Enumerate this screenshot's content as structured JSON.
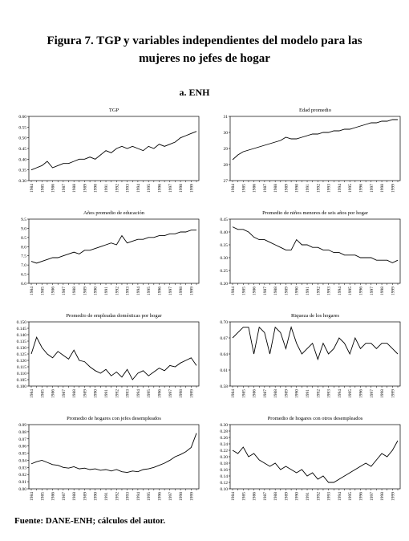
{
  "title": "Figura 7. TGP y variables independientes del modelo para las mujeres no jefes de hogar",
  "subtitle": "a. ENH",
  "footer": "Fuente: DANE-ENH; cálculos del autor.",
  "chart_data": [
    {
      "type": "line",
      "title": "TGP",
      "categories": [
        "1984",
        null,
        "1985",
        null,
        "1986",
        null,
        "1987",
        null,
        "1988",
        null,
        "1989",
        null,
        "1990",
        null,
        "1991",
        null,
        "1992",
        null,
        "1993",
        null,
        "1994",
        null,
        "1995",
        null,
        "1996",
        null,
        "1997",
        null,
        "1998",
        null,
        "1999",
        null
      ],
      "values": [
        0.35,
        0.36,
        0.37,
        0.39,
        0.36,
        0.37,
        0.38,
        0.38,
        0.39,
        0.4,
        0.4,
        0.41,
        0.4,
        0.42,
        0.44,
        0.43,
        0.45,
        0.46,
        0.45,
        0.46,
        0.45,
        0.44,
        0.46,
        0.45,
        0.47,
        0.46,
        0.47,
        0.48,
        0.5,
        0.51,
        0.52,
        0.53
      ],
      "color": "#000000",
      "ylim": [
        0.3,
        0.6
      ],
      "yticks": [
        {
          "value": 0.3,
          "label": "0.30"
        },
        {
          "value": 0.35,
          "label": "0.35"
        },
        {
          "value": 0.4,
          "label": "0.40"
        },
        {
          "value": 0.45,
          "label": "0.45"
        },
        {
          "value": 0.5,
          "label": "0.50"
        },
        {
          "value": 0.55,
          "label": "0.55"
        },
        {
          "value": 0.6,
          "label": "0.60"
        }
      ]
    },
    {
      "type": "line",
      "title": "Edad promedio",
      "categories": [
        "1984",
        null,
        "1985",
        null,
        "1986",
        null,
        "1987",
        null,
        "1988",
        null,
        "1989",
        null,
        "1990",
        null,
        "1991",
        null,
        "1992",
        null,
        "1993",
        null,
        "1994",
        null,
        "1995",
        null,
        "1996",
        null,
        "1997",
        null,
        "1998",
        null,
        "1999",
        null
      ],
      "values": [
        28.3,
        28.6,
        28.8,
        28.9,
        29.0,
        29.1,
        29.2,
        29.3,
        29.4,
        29.5,
        29.7,
        29.6,
        29.6,
        29.7,
        29.8,
        29.9,
        29.9,
        30.0,
        30.0,
        30.1,
        30.1,
        30.2,
        30.2,
        30.3,
        30.4,
        30.5,
        30.6,
        30.6,
        30.7,
        30.7,
        30.8,
        30.8
      ],
      "color": "#000000",
      "ylim": [
        27,
        31
      ],
      "yticks": [
        27,
        28,
        29,
        30,
        31
      ]
    },
    {
      "type": "line",
      "title": "Años promedio de educación",
      "categories": [
        "1984",
        null,
        "1985",
        null,
        "1986",
        null,
        "1987",
        null,
        "1988",
        null,
        "1989",
        null,
        "1990",
        null,
        "1991",
        null,
        "1992",
        null,
        "1993",
        null,
        "1994",
        null,
        "1995",
        null,
        "1996",
        null,
        "1997",
        null,
        "1998",
        null,
        "1999",
        null
      ],
      "values": [
        7.2,
        7.1,
        7.2,
        7.3,
        7.4,
        7.4,
        7.5,
        7.6,
        7.7,
        7.6,
        7.8,
        7.8,
        7.9,
        8.0,
        8.1,
        8.2,
        8.1,
        8.6,
        8.2,
        8.3,
        8.4,
        8.4,
        8.5,
        8.5,
        8.6,
        8.6,
        8.7,
        8.7,
        8.8,
        8.8,
        8.9,
        8.9
      ],
      "color": "#000000",
      "ylim": [
        6.0,
        9.5
      ],
      "yticks": [
        {
          "value": 6.0,
          "label": "6.0"
        },
        {
          "value": 6.5,
          "label": "6.5"
        },
        {
          "value": 7.0,
          "label": "7.0"
        },
        {
          "value": 7.5,
          "label": "7.5"
        },
        {
          "value": 8.0,
          "label": "8.0"
        },
        {
          "value": 8.5,
          "label": "8.5"
        },
        {
          "value": 9.0,
          "label": "9.0"
        },
        {
          "value": 9.5,
          "label": "9.5"
        }
      ]
    },
    {
      "type": "line",
      "title": "Promedio de niños menores de seis años por hogar",
      "categories": [
        "1984",
        null,
        "1985",
        null,
        "1986",
        null,
        "1987",
        null,
        "1988",
        null,
        "1989",
        null,
        "1990",
        null,
        "1991",
        null,
        "1992",
        null,
        "1993",
        null,
        "1994",
        null,
        "1995",
        null,
        "1996",
        null,
        "1997",
        null,
        "1998",
        null,
        "1999",
        null
      ],
      "values": [
        0.42,
        0.41,
        0.41,
        0.4,
        0.38,
        0.37,
        0.37,
        0.36,
        0.35,
        0.34,
        0.33,
        0.33,
        0.37,
        0.35,
        0.35,
        0.34,
        0.34,
        0.33,
        0.33,
        0.32,
        0.32,
        0.31,
        0.31,
        0.31,
        0.3,
        0.3,
        0.3,
        0.29,
        0.29,
        0.29,
        0.28,
        0.29
      ],
      "color": "#000000",
      "ylim": [
        0.2,
        0.45
      ],
      "yticks": [
        {
          "value": 0.2,
          "label": "0.20"
        },
        {
          "value": 0.25,
          "label": "0.25"
        },
        {
          "value": 0.3,
          "label": "0.30"
        },
        {
          "value": 0.35,
          "label": "0.35"
        },
        {
          "value": 0.4,
          "label": "0.40"
        },
        {
          "value": 0.45,
          "label": "0.45"
        }
      ]
    },
    {
      "type": "line",
      "title": "Promedio de empleadas domésticas por hogar",
      "categories": [
        "1984",
        null,
        "1985",
        null,
        "1986",
        null,
        "1987",
        null,
        "1988",
        null,
        "1989",
        null,
        "1990",
        null,
        "1991",
        null,
        "1992",
        null,
        "1993",
        null,
        "1994",
        null,
        "1995",
        null,
        "1996",
        null,
        "1997",
        null,
        "1998",
        null,
        "1999",
        null
      ],
      "values": [
        0.125,
        0.138,
        0.13,
        0.125,
        0.122,
        0.127,
        0.124,
        0.121,
        0.128,
        0.12,
        0.119,
        0.115,
        0.112,
        0.11,
        0.113,
        0.108,
        0.111,
        0.107,
        0.113,
        0.105,
        0.11,
        0.112,
        0.108,
        0.111,
        0.114,
        0.112,
        0.116,
        0.115,
        0.118,
        0.12,
        0.122,
        0.116
      ],
      "color": "#000000",
      "ylim": [
        0.1,
        0.15
      ],
      "yticks": [
        {
          "value": 0.1,
          "label": "0.100"
        },
        {
          "value": 0.105,
          "label": "0.105"
        },
        {
          "value": 0.11,
          "label": "0.110"
        },
        {
          "value": 0.115,
          "label": "0.115"
        },
        {
          "value": 0.12,
          "label": "0.120"
        },
        {
          "value": 0.125,
          "label": "0.125"
        },
        {
          "value": 0.13,
          "label": "0.130"
        },
        {
          "value": 0.135,
          "label": "0.135"
        },
        {
          "value": 0.14,
          "label": "0.140"
        },
        {
          "value": 0.145,
          "label": "0.145"
        },
        {
          "value": 0.15,
          "label": "0.150"
        }
      ]
    },
    {
      "type": "line",
      "title": "Riqueza de los hogares",
      "categories": [
        "1984",
        null,
        "1985",
        null,
        "1986",
        null,
        "1987",
        null,
        "1988",
        null,
        "1989",
        null,
        "1990",
        null,
        "1991",
        null,
        "1992",
        null,
        "1993",
        null,
        "1994",
        null,
        "1995",
        null,
        "1996",
        null,
        "1997",
        null,
        "1998",
        null,
        "1999",
        null
      ],
      "values": [
        0.67,
        0.68,
        0.69,
        0.69,
        0.64,
        0.69,
        0.68,
        0.64,
        0.69,
        0.68,
        0.65,
        0.69,
        0.66,
        0.64,
        0.65,
        0.66,
        0.63,
        0.66,
        0.64,
        0.65,
        0.67,
        0.66,
        0.64,
        0.67,
        0.65,
        0.66,
        0.66,
        0.65,
        0.66,
        0.66,
        0.65,
        0.64
      ],
      "color": "#000000",
      "ylim": [
        0.58,
        0.7
      ],
      "yticks": [
        0.58,
        0.61,
        0.64,
        0.67,
        {
          "value": 0.7,
          "label": "0.70"
        }
      ]
    },
    {
      "type": "line",
      "title": "Promedio de hogares con jefes desempleados",
      "categories": [
        "1984",
        null,
        "1985",
        null,
        "1986",
        null,
        "1987",
        null,
        "1988",
        null,
        "1989",
        null,
        "1990",
        null,
        "1991",
        null,
        "1992",
        null,
        "1993",
        null,
        "1994",
        null,
        "1995",
        null,
        "1996",
        null,
        "1997",
        null,
        "1998",
        null,
        "1999",
        null
      ],
      "values": [
        0.035,
        0.038,
        0.04,
        0.037,
        0.034,
        0.033,
        0.03,
        0.029,
        0.031,
        0.028,
        0.029,
        0.027,
        0.028,
        0.026,
        0.027,
        0.025,
        0.027,
        0.024,
        0.023,
        0.025,
        0.024,
        0.027,
        0.028,
        0.03,
        0.033,
        0.036,
        0.04,
        0.045,
        0.048,
        0.052,
        0.058,
        0.078
      ],
      "color": "#000000",
      "ylim": [
        0.0,
        0.09
      ],
      "yticks": [
        {
          "value": 0.0,
          "label": "0.00"
        },
        0.01,
        0.02,
        0.03,
        0.04,
        0.05,
        0.06,
        0.07,
        0.08,
        0.09
      ]
    },
    {
      "type": "line",
      "title": "Promedio de hogares con otros desempleados",
      "categories": [
        "1984",
        null,
        "1985",
        null,
        "1986",
        null,
        "1987",
        null,
        "1988",
        null,
        "1989",
        null,
        "1990",
        null,
        "1991",
        null,
        "1992",
        null,
        "1993",
        null,
        "1994",
        null,
        "1995",
        null,
        "1996",
        null,
        "1997",
        null,
        "1998",
        null,
        "1999",
        null
      ],
      "values": [
        0.22,
        0.21,
        0.23,
        0.2,
        0.21,
        0.19,
        0.18,
        0.17,
        0.18,
        0.16,
        0.17,
        0.16,
        0.15,
        0.16,
        0.14,
        0.15,
        0.13,
        0.14,
        0.12,
        0.12,
        0.13,
        0.14,
        0.15,
        0.16,
        0.17,
        0.18,
        0.17,
        0.19,
        0.21,
        0.2,
        0.22,
        0.25
      ],
      "color": "#000000",
      "ylim": [
        0.1,
        0.3
      ],
      "yticks": [
        {
          "value": 0.1,
          "label": "0.10"
        },
        0.12,
        0.14,
        0.16,
        0.18,
        {
          "value": 0.2,
          "label": "0.20"
        },
        0.22,
        0.24,
        0.26,
        0.28,
        {
          "value": 0.3,
          "label": "0.30"
        }
      ]
    }
  ]
}
